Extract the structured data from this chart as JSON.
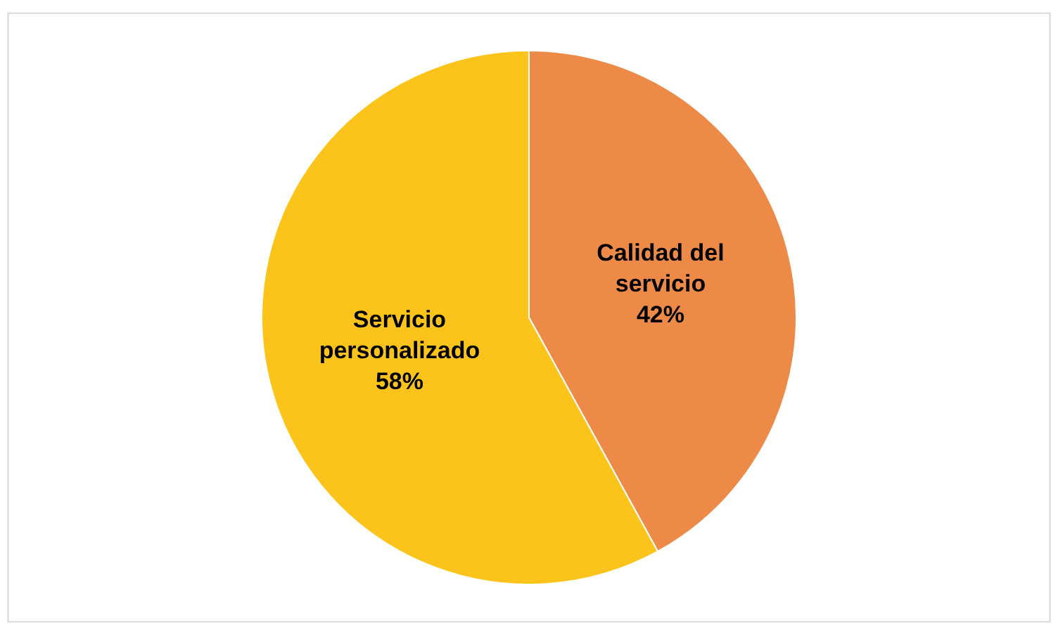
{
  "chart_data": {
    "type": "pie",
    "categories": [
      "Calidad del servicio",
      "Servicio personalizado"
    ],
    "values": [
      42,
      58
    ],
    "colors": [
      "#ed8a47",
      "#fcc41a"
    ],
    "value_labels": [
      "42%",
      "58%"
    ]
  }
}
